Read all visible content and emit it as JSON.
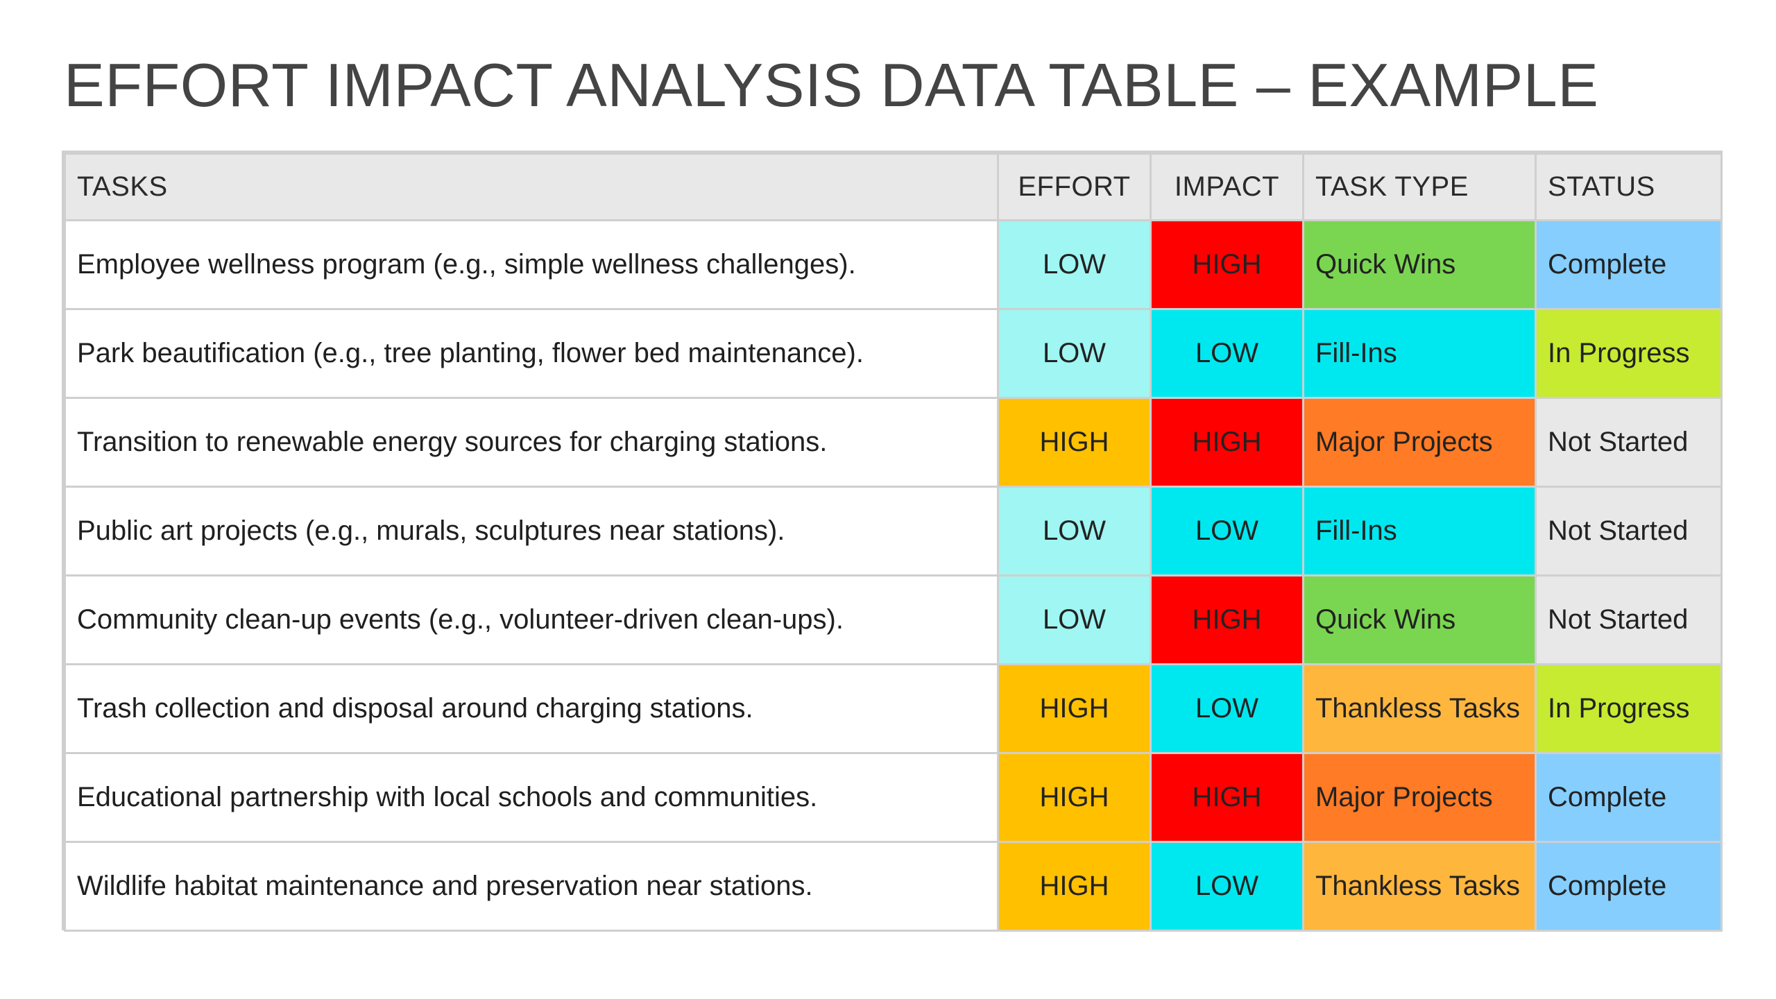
{
  "title": "EFFORT IMPACT ANALYSIS DATA TABLE – EXAMPLE",
  "headers": {
    "tasks": "TASKS",
    "effort": "EFFORT",
    "impact": "IMPACT",
    "task_type": "TASK TYPE",
    "status": "STATUS"
  },
  "colors": {
    "header_bg": "#e8e8e8",
    "effort": {
      "LOW": "#9ff6f2",
      "HIGH": "#ffc000"
    },
    "impact": {
      "LOW": "#00e8ef",
      "HIGH": "#ff0000"
    },
    "task_type": {
      "Quick Wins": "#7ad650",
      "Fill-Ins": "#00e8ef",
      "Major Projects": "#ff7b25",
      "Thankless Tasks": "#ffb63d"
    },
    "status": {
      "Complete": "#85cefe",
      "In Progress": "#c6eb31",
      "Not Started": "#e8e8e8"
    }
  },
  "rows": [
    {
      "task": "Employee wellness program (e.g., simple wellness challenges).",
      "effort": "LOW",
      "impact": "HIGH",
      "task_type": "Quick Wins",
      "status": "Complete"
    },
    {
      "task": "Park beautification (e.g., tree planting, flower bed maintenance).",
      "effort": "LOW",
      "impact": "LOW",
      "task_type": "Fill-Ins",
      "status": "In Progress"
    },
    {
      "task": "Transition to renewable energy sources for charging stations.",
      "effort": "HIGH",
      "impact": "HIGH",
      "task_type": "Major Projects",
      "status": "Not Started"
    },
    {
      "task": "Public art projects (e.g., murals, sculptures near stations).",
      "effort": "LOW",
      "impact": "LOW",
      "task_type": "Fill-Ins",
      "status": "Not Started"
    },
    {
      "task": "Community clean-up events (e.g., volunteer-driven clean-ups).",
      "effort": "LOW",
      "impact": "HIGH",
      "task_type": "Quick Wins",
      "status": "Not Started"
    },
    {
      "task": "Trash collection and disposal around charging stations.",
      "effort": "HIGH",
      "impact": "LOW",
      "task_type": "Thankless Tasks",
      "status": "In Progress"
    },
    {
      "task": "Educational partnership with local schools and communities.",
      "effort": "HIGH",
      "impact": "HIGH",
      "task_type": "Major Projects",
      "status": "Complete"
    },
    {
      "task": "Wildlife habitat maintenance and preservation near stations.",
      "effort": "HIGH",
      "impact": "LOW",
      "task_type": "Thankless Tasks",
      "status": "Complete"
    }
  ]
}
